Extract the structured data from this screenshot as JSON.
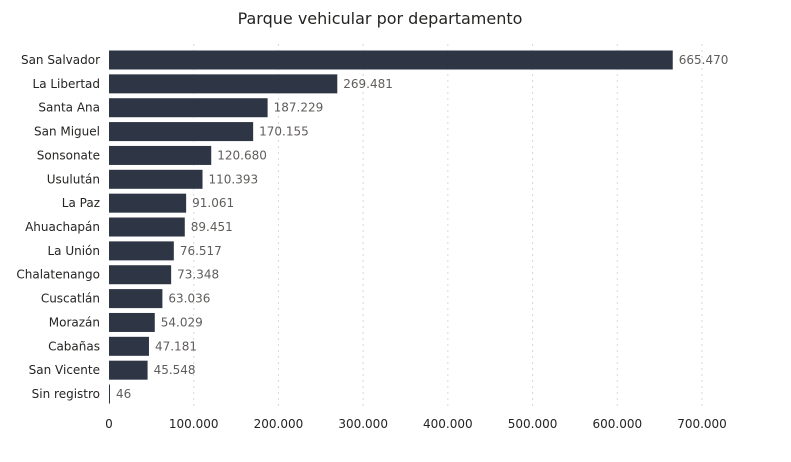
{
  "chart_data": {
    "type": "bar",
    "orientation": "horizontal",
    "title": "Parque vehicular por departamento",
    "xlabel": "",
    "ylabel": "",
    "categories": [
      "San Salvador",
      "La Libertad",
      "Santa Ana",
      "San Miguel",
      "Sonsonate",
      "Usulután",
      "La Paz",
      "Ahuachapán",
      "La Unión",
      "Chalatenango",
      "Cuscatlán",
      "Morazán",
      "Cabañas",
      "San Vicente",
      "Sin registro"
    ],
    "values": [
      665470,
      269481,
      187229,
      170155,
      120680,
      110393,
      91061,
      89451,
      76517,
      73348,
      63036,
      54029,
      47181,
      45548,
      46
    ],
    "value_labels": [
      "665.470",
      "269.481",
      "187.229",
      "170.155",
      "120.680",
      "110.393",
      "91.061",
      "89.451",
      "76.517",
      "73.348",
      "63.036",
      "54.029",
      "47.181",
      "45.548",
      "46"
    ],
    "xlim": [
      0,
      700000
    ],
    "x_ticks": [
      0,
      100000,
      200000,
      300000,
      400000,
      500000,
      600000,
      700000
    ],
    "x_tick_labels": [
      "0",
      "100.000",
      "200.000",
      "300.000",
      "400.000",
      "500.000",
      "600.000",
      "700.000"
    ],
    "grid": true,
    "legend": "none",
    "bar_color": "#2e3544"
  }
}
